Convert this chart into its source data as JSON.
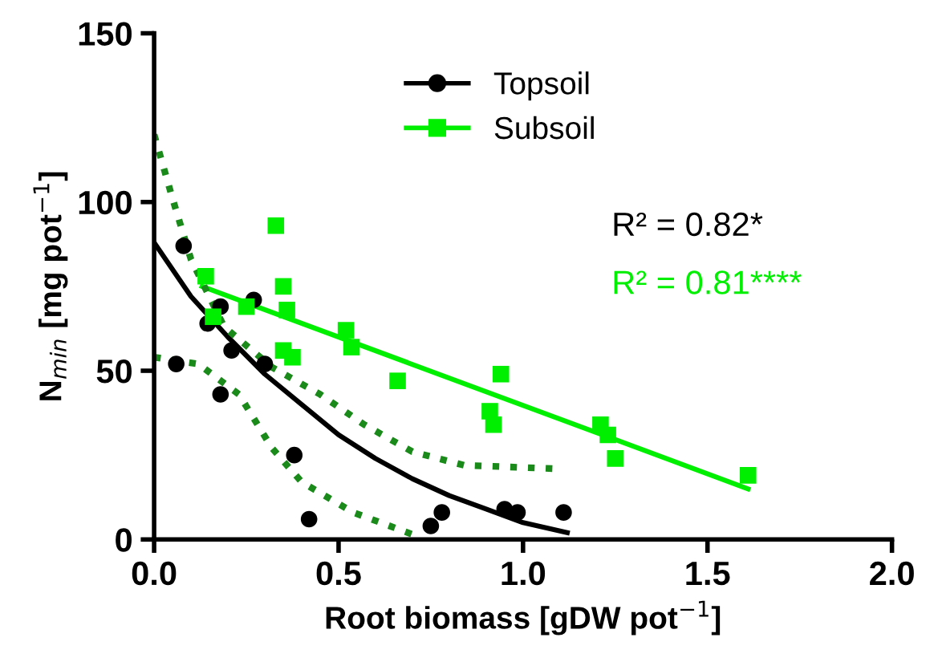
{
  "chart_data": {
    "type": "scatter",
    "xlabel": "Root biomass [gDW pot$^{−1}$]",
    "ylabel": "N$_{min}$ [mg pot$^{−1}$]",
    "xlim": [
      0,
      2
    ],
    "ylim": [
      0,
      150
    ],
    "xticks": [
      {
        "value": 0,
        "label": "0.0"
      },
      {
        "value": 0.5,
        "label": "0.5"
      },
      {
        "value": 1,
        "label": "1.0"
      },
      {
        "value": 1.5,
        "label": "1.5"
      },
      {
        "value": 2,
        "label": "2.0"
      }
    ],
    "yticks": [
      0,
      50,
      100,
      150
    ],
    "grid": false,
    "legend": "top",
    "annotations": [
      "R² = 0.82*",
      "R² = 0.81****"
    ],
    "series": [
      {
        "name": "Topsoil",
        "marker": "circle",
        "color": "#000000",
        "x": [
          0.06,
          0.08,
          0.145,
          0.18,
          0.18,
          0.21,
          0.27,
          0.3,
          0.38,
          0.42,
          0.75,
          0.78,
          0.95,
          0.985,
          1.11
        ],
        "values": [
          52,
          87,
          64,
          69,
          43,
          56,
          71,
          52,
          25,
          6,
          4,
          8,
          9,
          8,
          8
        ]
      },
      {
        "name": "Subsoil",
        "marker": "square",
        "color": "#00ee00",
        "x": [
          0.14,
          0.16,
          0.25,
          0.33,
          0.35,
          0.36,
          0.35,
          0.375,
          0.52,
          0.535,
          0.66,
          0.91,
          0.92,
          0.94,
          1.21,
          1.23,
          1.25,
          1.61
        ],
        "values": [
          78,
          66,
          69,
          93,
          75,
          68,
          56,
          54,
          62,
          57,
          47,
          38,
          34,
          49,
          34,
          31,
          24,
          19
        ]
      },
      {
        "type": "line",
        "line_style": "solid",
        "color": "#000000",
        "x": [
          0,
          0.1,
          0.2,
          0.3,
          0.4,
          0.5,
          0.6,
          0.7,
          0.8,
          0.9,
          1.0,
          1.12
        ],
        "values": [
          88,
          72,
          60,
          49,
          40,
          31,
          24,
          18,
          13,
          9,
          5,
          2
        ]
      },
      {
        "type": "line",
        "line_style": "solid",
        "color": "#00ee00",
        "x": [
          0.13,
          1.61
        ],
        "values": [
          75,
          15
        ]
      },
      {
        "type": "line",
        "line_style": "dotted",
        "color": "#1a8a1a",
        "x": [
          0,
          0.05,
          0.1,
          0.19,
          0.32,
          0.45,
          0.57,
          0.7,
          0.84,
          1.08
        ],
        "values": [
          120,
          101,
          83,
          63,
          51,
          43,
          34,
          26,
          22,
          21
        ]
      },
      {
        "type": "line",
        "line_style": "dotted",
        "color": "#1a8a1a",
        "x": [
          0,
          0.12,
          0.23,
          0.32,
          0.4,
          0.54,
          0.7,
          0.72
        ],
        "values": [
          54,
          52,
          43,
          27,
          17,
          8,
          1.5,
          0
        ]
      }
    ]
  }
}
